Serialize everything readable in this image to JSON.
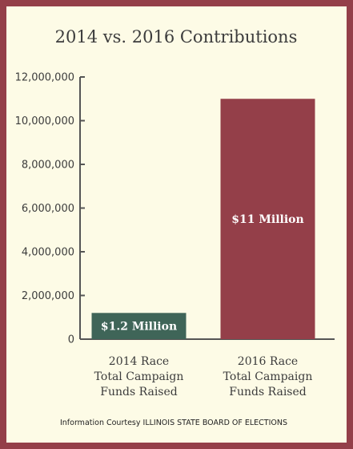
{
  "colors": {
    "background": "#fdfbe6",
    "border": "#943f49",
    "axis": "#555555"
  },
  "chart_data": {
    "type": "bar",
    "title": "2014 vs. 2016 Contributions",
    "xlabel": "",
    "ylabel": "",
    "ylim": [
      0,
      12000000
    ],
    "yticks": [
      0,
      2000000,
      4000000,
      6000000,
      8000000,
      10000000,
      12000000
    ],
    "ytick_labels": [
      "0",
      "2,000,000",
      "4,000,000",
      "6,000,000",
      "8,000,000",
      "10,000,000",
      "12,000,000"
    ],
    "categories": [
      [
        "2014 Race",
        "Total Campaign",
        "Funds Raised"
      ],
      [
        "2016 Race",
        "Total Campaign",
        "Funds Raised"
      ]
    ],
    "values": [
      1200000,
      11000000
    ],
    "data_labels": [
      "$1.2 Million",
      "$11 Million"
    ],
    "bar_colors": [
      "#3f6558",
      "#943f49"
    ],
    "grid": false,
    "legend": "none"
  },
  "source": "Information Courtesy ILLINOIS STATE BOARD OF ELECTIONS"
}
